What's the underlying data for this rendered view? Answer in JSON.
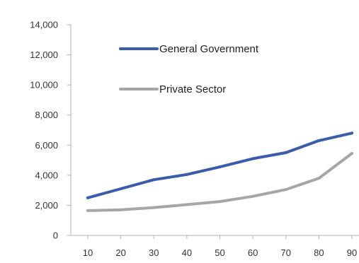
{
  "chart_data": {
    "type": "line",
    "title": "",
    "xlabel": "",
    "ylabel": "",
    "x": [
      10,
      20,
      30,
      40,
      50,
      60,
      70,
      80,
      90
    ],
    "x_tick_labels": [
      "10",
      "20",
      "30",
      "40",
      "50",
      "60",
      "70",
      "80",
      "90"
    ],
    "ylim": [
      0,
      14000
    ],
    "y_ticks": [
      0,
      2000,
      4000,
      6000,
      8000,
      10000,
      12000,
      14000
    ],
    "y_tick_labels": [
      "0",
      "2,000",
      "4,000",
      "6,000",
      "8,000",
      "10,000",
      "12,000",
      "14,000"
    ],
    "grid": false,
    "legend_position": "top-left",
    "series": [
      {
        "name": "General Government",
        "color": "#3b5bab",
        "values": [
          2500,
          3100,
          3700,
          4050,
          4550,
          5100,
          5500,
          6300,
          6800
        ]
      },
      {
        "name": "Private Sector",
        "color": "#a6a6a6",
        "values": [
          1650,
          1700,
          1850,
          2050,
          2250,
          2600,
          3050,
          3800,
          5450
        ]
      }
    ]
  }
}
